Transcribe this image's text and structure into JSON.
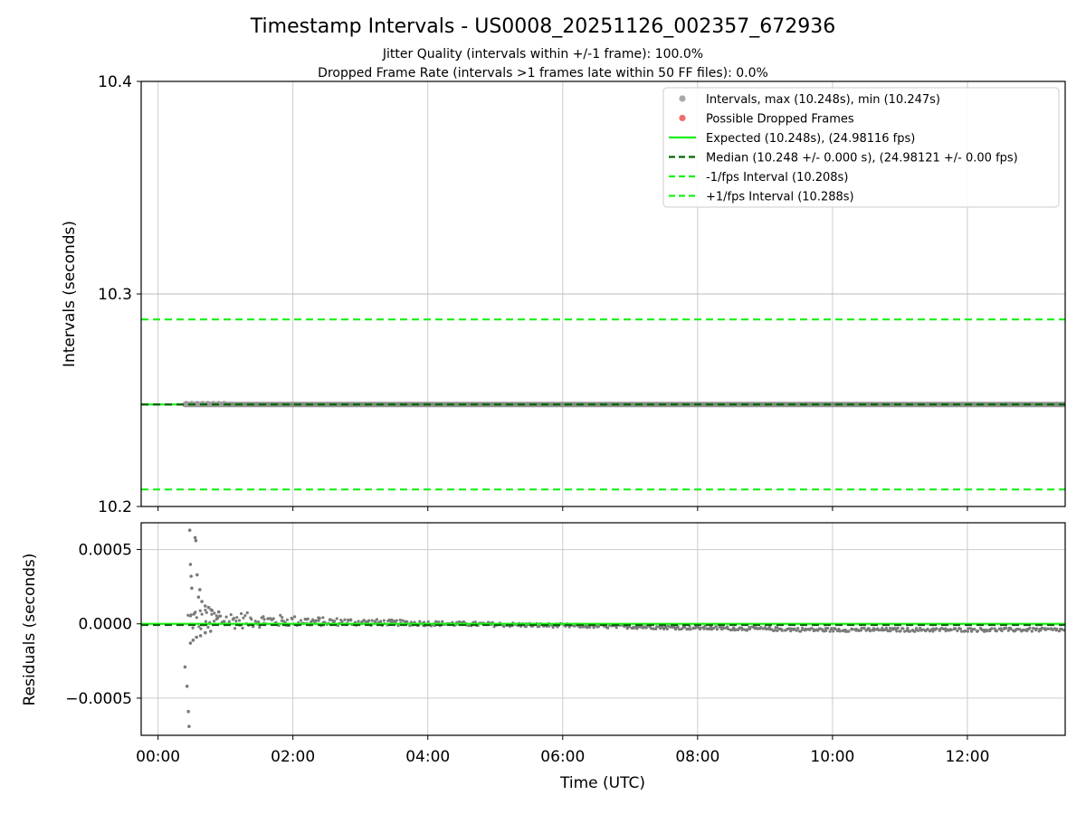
{
  "chart_data": [
    {
      "type": "scatter",
      "title": "Timestamp Intervals - US0008_20251126_002357_672936",
      "subtitle_1": "Jitter Quality (intervals within +/-1 frame): 100.0%",
      "subtitle_2": "Dropped Frame Rate (intervals >1 frames late within 50 FF files): 0.0%",
      "ylabel": "Intervals (seconds)",
      "ylim": [
        10.2,
        10.4
      ],
      "yticks": [
        "10.2",
        "10.3",
        "10.4"
      ],
      "xlim_hours": [
        -0.25,
        13.45
      ],
      "grid": true,
      "legend_position": "top-right",
      "legend": [
        {
          "label": "Intervals, max (10.248s), min (10.247s)",
          "color": "#a9a9a9",
          "marker": "dot"
        },
        {
          "label": "Possible Dropped Frames",
          "color": "#f26b6b",
          "marker": "dot"
        },
        {
          "label": "Expected (10.248s), (24.98116 fps)",
          "color": "#19f019",
          "marker": "line"
        },
        {
          "label": "Median (10.248 +/- 0.000 s), (24.98121 +/- 0.00 fps)",
          "color": "#006400",
          "marker": "dashed"
        },
        {
          "label": "-1/fps Interval (10.208s)",
          "color": "#19f019",
          "marker": "dashed"
        },
        {
          "label": "+1/fps Interval (10.288s)",
          "color": "#19f019",
          "marker": "dashed"
        }
      ],
      "series": [
        {
          "name": "Expected",
          "value": 10.248,
          "style": "solid",
          "color": "#19f019"
        },
        {
          "name": "Median",
          "value": 10.248,
          "style": "dashed",
          "color": "#006400"
        },
        {
          "name": "-1/fps Interval",
          "value": 10.208,
          "style": "dashed",
          "color": "#19f019"
        },
        {
          "name": "+1/fps Interval",
          "value": 10.288,
          "style": "dashed",
          "color": "#19f019"
        },
        {
          "name": "Intervals",
          "x_range_hours": [
            0.4,
            13.45
          ],
          "value": 10.248,
          "color": "#808080"
        }
      ]
    },
    {
      "type": "scatter",
      "ylabel": "Residuals (seconds)",
      "xlabel": "Time (UTC)",
      "ylim": [
        -0.00075,
        0.00068
      ],
      "yticks": [
        {
          "value": 0.0005,
          "label": "0.0005"
        },
        {
          "value": 0.0,
          "label": "0.0000"
        },
        {
          "value": -0.0005,
          "label": "−0.0005"
        }
      ],
      "xticks": [
        {
          "value": 0,
          "label": "00:00"
        },
        {
          "value": 2,
          "label": "02:00"
        },
        {
          "value": 4,
          "label": "04:00"
        },
        {
          "value": 6,
          "label": "06:00"
        },
        {
          "value": 8,
          "label": "08:00"
        },
        {
          "value": 10,
          "label": "10:00"
        },
        {
          "value": 12,
          "label": "12:00"
        }
      ],
      "xlim_hours": [
        -0.25,
        13.45
      ],
      "grid": true,
      "zero_line_color": "#19f019",
      "median_line_color": "#006400",
      "residual_points": [
        [
          0.4,
          -0.00029
        ],
        [
          0.43,
          -0.00042
        ],
        [
          0.45,
          -0.00059
        ],
        [
          0.46,
          -0.00069
        ],
        [
          0.47,
          0.00063
        ],
        [
          0.48,
          0.0004
        ],
        [
          0.49,
          0.00032
        ],
        [
          0.5,
          0.00024
        ],
        [
          0.55,
          0.00058
        ],
        [
          0.56,
          0.00056
        ],
        [
          0.58,
          0.00033
        ],
        [
          0.62,
          0.00023
        ],
        [
          0.6,
          0.00018
        ],
        [
          0.65,
          0.00015
        ],
        [
          0.7,
          0.00012
        ],
        [
          0.75,
          0.00011
        ],
        [
          0.8,
          9e-05
        ],
        [
          0.9,
          8e-05
        ],
        [
          0.48,
          -0.00013
        ],
        [
          0.52,
          -0.00011
        ],
        [
          0.57,
          -9e-05
        ],
        [
          0.63,
          -8e-05
        ],
        [
          0.7,
          -6e-05
        ],
        [
          0.78,
          -5e-05
        ]
      ],
      "residual_envelope": {
        "x_start": 0.45,
        "x_end": 13.45,
        "center_start": 3e-05,
        "center_end": -4e-05,
        "spread_start": 9e-05,
        "spread_end": 1.2e-05,
        "count": 700
      }
    }
  ]
}
